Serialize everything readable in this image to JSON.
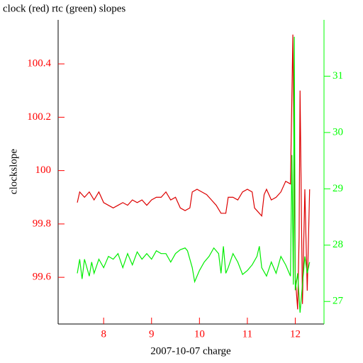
{
  "chart_data": {
    "type": "line",
    "title": "clock (red) rtc (green) slopes",
    "xlabel": "2007-10-07 charge",
    "ylabel": "clockslope",
    "xlim": [
      7.05,
      12.6
    ],
    "xticks": [
      8,
      9,
      10,
      11,
      12
    ],
    "ylim": [
      99.425,
      100.565
    ],
    "yticks": [
      99.6,
      99.8,
      100,
      100.2,
      100.4
    ],
    "y2lim": [
      26.6,
      32
    ],
    "y2ticks": [
      27,
      28,
      29,
      30,
      31
    ],
    "left_axis_color": "#ff0000",
    "right_axis_color": "#00ff00",
    "series": [
      {
        "name": "clock",
        "color": "#dd0000",
        "axis": "y",
        "x": [
          7.45,
          7.5,
          7.6,
          7.7,
          7.8,
          7.9,
          8.0,
          8.1,
          8.2,
          8.3,
          8.4,
          8.5,
          8.6,
          8.7,
          8.8,
          8.9,
          9.0,
          9.1,
          9.2,
          9.3,
          9.4,
          9.5,
          9.6,
          9.7,
          9.8,
          9.85,
          9.95,
          10.05,
          10.15,
          10.25,
          10.35,
          10.45,
          10.55,
          10.6,
          10.7,
          10.8,
          10.9,
          11.0,
          11.1,
          11.15,
          11.25,
          11.3,
          11.35,
          11.4,
          11.5,
          11.6,
          11.7,
          11.8,
          11.9,
          11.95,
          12.0,
          12.05,
          12.08,
          12.1,
          12.15,
          12.2,
          12.25,
          12.3
        ],
        "values": [
          99.88,
          99.92,
          99.9,
          99.92,
          99.89,
          99.92,
          99.88,
          99.87,
          99.86,
          99.87,
          99.88,
          99.87,
          99.89,
          99.88,
          99.89,
          99.87,
          99.89,
          99.9,
          99.9,
          99.92,
          99.89,
          99.9,
          99.86,
          99.85,
          99.86,
          99.92,
          99.93,
          99.92,
          99.91,
          99.89,
          99.87,
          99.84,
          99.84,
          99.9,
          99.9,
          99.89,
          99.92,
          99.93,
          99.92,
          99.86,
          99.84,
          99.83,
          99.91,
          99.93,
          99.89,
          99.9,
          99.92,
          99.96,
          99.95,
          100.51,
          99.6,
          99.48,
          99.75,
          100.3,
          99.5,
          99.93,
          99.55,
          99.93
        ]
      },
      {
        "name": "rtc",
        "color": "#00ee00",
        "axis": "y2",
        "x": [
          7.45,
          7.5,
          7.55,
          7.6,
          7.7,
          7.75,
          7.8,
          7.9,
          8.0,
          8.1,
          8.2,
          8.3,
          8.4,
          8.5,
          8.6,
          8.7,
          8.8,
          8.9,
          9.0,
          9.1,
          9.2,
          9.3,
          9.4,
          9.5,
          9.6,
          9.7,
          9.75,
          9.85,
          9.9,
          10.0,
          10.1,
          10.2,
          10.3,
          10.4,
          10.45,
          10.5,
          10.55,
          10.6,
          10.7,
          10.8,
          10.9,
          11.0,
          11.1,
          11.2,
          11.25,
          11.3,
          11.4,
          11.5,
          11.6,
          11.7,
          11.8,
          11.9,
          11.93,
          11.96,
          11.98,
          12.0,
          12.05,
          12.1,
          12.15,
          12.2,
          12.25,
          12.3
        ],
        "values": [
          27.5,
          27.75,
          27.4,
          27.75,
          27.45,
          27.7,
          27.5,
          27.75,
          27.6,
          27.8,
          27.75,
          27.85,
          27.6,
          27.85,
          27.65,
          27.88,
          27.75,
          27.85,
          27.75,
          27.9,
          27.85,
          27.85,
          27.7,
          27.85,
          27.92,
          27.95,
          27.9,
          27.6,
          27.35,
          27.55,
          27.7,
          27.8,
          27.95,
          27.85,
          27.5,
          27.98,
          27.5,
          27.6,
          27.85,
          27.7,
          27.48,
          27.55,
          27.65,
          27.8,
          27.98,
          27.6,
          27.45,
          27.7,
          27.5,
          27.8,
          27.65,
          27.45,
          29.6,
          27.3,
          31.7,
          27.2,
          27.5,
          26.8,
          27.3,
          27.8,
          27.5,
          27.7
        ]
      }
    ]
  }
}
